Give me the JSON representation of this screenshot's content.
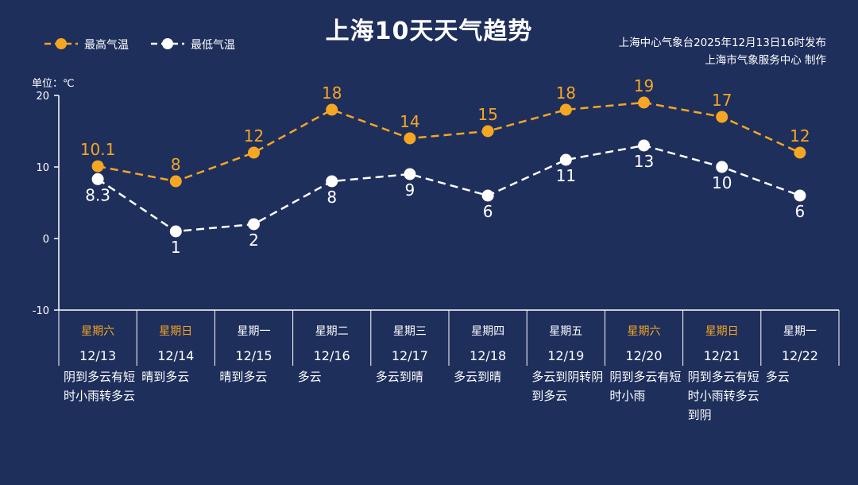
{
  "title": "上海10天天气趋势",
  "source": {
    "line1": "上海中心气象台2025年12月13日16时发布",
    "line2": "上海市气象服务中心 制作"
  },
  "unit_label": "单位：℃",
  "colors": {
    "background": "#1f2f5c",
    "high": "#f5a623",
    "low": "#ffffff",
    "weekend": "#f5a623",
    "weekday": "#ffffff"
  },
  "chart_data": {
    "type": "line",
    "title": "上海10天天气趋势",
    "ylabel": "单位：℃",
    "ylim": [
      -10,
      20
    ],
    "yticks": [
      -10,
      0,
      10,
      20
    ],
    "categories": [
      "12/13",
      "12/14",
      "12/15",
      "12/16",
      "12/17",
      "12/18",
      "12/19",
      "12/20",
      "12/21",
      "12/22"
    ],
    "series": [
      {
        "name": "最高气温",
        "values": [
          10.1,
          8,
          12,
          18,
          14,
          15,
          18,
          19,
          17,
          12
        ],
        "labels": [
          "10.1",
          "8",
          "12",
          "18",
          "14",
          "15",
          "18",
          "19",
          "17",
          "12"
        ]
      },
      {
        "name": "最低气温",
        "values": [
          8.3,
          1,
          2,
          8,
          9,
          6,
          11,
          13,
          10,
          6
        ],
        "labels": [
          "8.3",
          "1",
          "2",
          "8",
          "9",
          "6",
          "11",
          "13",
          "10",
          "6"
        ]
      }
    ],
    "legend": "top-left",
    "grid": false
  },
  "days": [
    {
      "weekday": "星期六",
      "date": "12/13",
      "weather": "阴到多云有短时小雨转多云",
      "weekend": true
    },
    {
      "weekday": "星期日",
      "date": "12/14",
      "weather": "晴到多云",
      "weekend": true
    },
    {
      "weekday": "星期一",
      "date": "12/15",
      "weather": "晴到多云",
      "weekend": false
    },
    {
      "weekday": "星期二",
      "date": "12/16",
      "weather": "多云",
      "weekend": false
    },
    {
      "weekday": "星期三",
      "date": "12/17",
      "weather": "多云到晴",
      "weekend": false
    },
    {
      "weekday": "星期四",
      "date": "12/18",
      "weather": "多云到晴",
      "weekend": false
    },
    {
      "weekday": "星期五",
      "date": "12/19",
      "weather": "多云到阴转阴到多云",
      "weekend": false
    },
    {
      "weekday": "星期六",
      "date": "12/20",
      "weather": "阴到多云有短时小雨",
      "weekend": true
    },
    {
      "weekday": "星期日",
      "date": "12/21",
      "weather": "阴到多云有短时小雨转多云到阴",
      "weekend": true
    },
    {
      "weekday": "星期一",
      "date": "12/22",
      "weather": "多云",
      "weekend": false
    }
  ]
}
